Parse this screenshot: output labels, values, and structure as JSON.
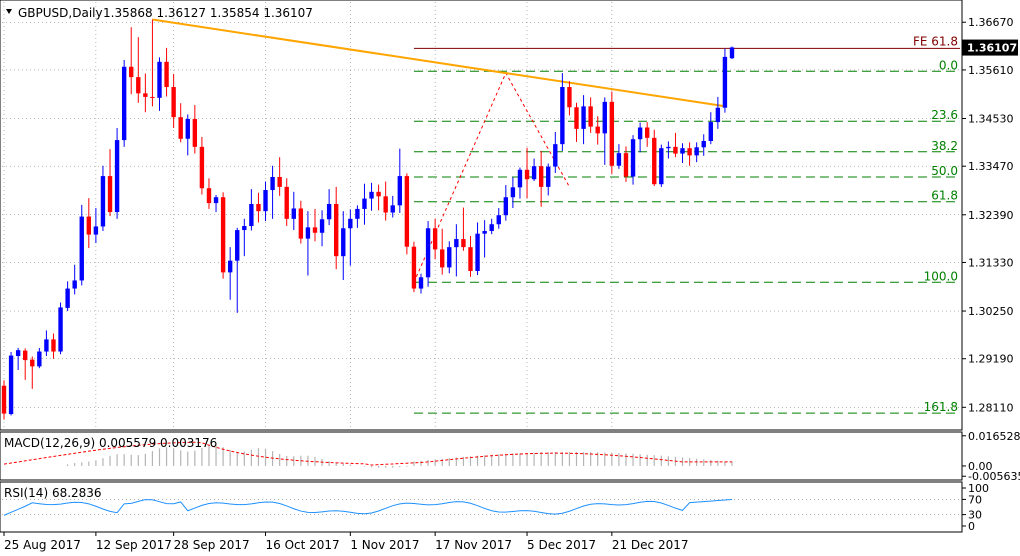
{
  "header": {
    "symbol": "GBPUSD,Daily",
    "ohlc": "1.35868 1.36127 1.35854 1.36107"
  },
  "colors": {
    "bull": "#0000ff",
    "bear": "#ff0000",
    "trendline": "#ffa500",
    "fib_level": "#008000",
    "fib_label": "#008000",
    "fe_line": "#800000",
    "swing_line": "#ff0000",
    "grid": "#000000",
    "macd_signal": "#ff0000",
    "macd_hist": "#b4b4b4",
    "rsi_line": "#1e90ff",
    "price_box_bg": "#000000",
    "price_box_text": "#ffffff"
  },
  "chart_data": [
    {
      "type": "candlestick",
      "title": "GBPUSD,Daily",
      "y_ticks": [
        "1.36670",
        "1.35610",
        "1.34530",
        "1.33470",
        "1.32390",
        "1.31330",
        "1.30250",
        "1.29190",
        "1.28110"
      ],
      "current_price": "1.36107",
      "ylim": [
        1.2765,
        1.3712
      ],
      "x_ticks": [
        "25 Aug 2017",
        "12 Sep 2017",
        "28 Sep 2017",
        "16 Oct 2017",
        "1 Nov 2017",
        "17 Nov 2017",
        "5 Dec 2017",
        "21 Dec 2017"
      ],
      "fibonacci": {
        "levels": [
          {
            "label": "0.0",
            "value": 1.3558
          },
          {
            "label": "23.6",
            "value": 1.3447
          },
          {
            "label": "38.2",
            "value": 1.3379
          },
          {
            "label": "50.0",
            "value": 1.3323
          },
          {
            "label": "61.8",
            "value": 1.3268
          },
          {
            "label": "100.0",
            "value": 1.3089
          },
          {
            "label": "161.8",
            "value": 1.2798
          }
        ],
        "extension": {
          "label": "FE 61.8",
          "value": 1.3609
        }
      },
      "candles": [
        [
          1.2859,
          1.2871,
          1.2784,
          1.2797
        ],
        [
          1.2796,
          1.2934,
          1.2793,
          1.2926
        ],
        [
          1.2925,
          1.2943,
          1.2894,
          1.2938
        ],
        [
          1.2937,
          1.2942,
          1.2872,
          1.2916
        ],
        [
          1.2917,
          1.2924,
          1.2852,
          1.2902
        ],
        [
          1.2902,
          1.2943,
          1.2898,
          1.2935
        ],
        [
          1.2935,
          1.2982,
          1.2925,
          1.2962
        ],
        [
          1.2962,
          1.2975,
          1.2919,
          1.2935
        ],
        [
          1.2935,
          1.3044,
          1.2929,
          1.3033
        ],
        [
          1.3032,
          1.3091,
          1.3025,
          1.3075
        ],
        [
          1.3075,
          1.3128,
          1.3062,
          1.3093
        ],
        [
          1.3093,
          1.3261,
          1.3082,
          1.3235
        ],
        [
          1.3235,
          1.3276,
          1.3165,
          1.3195
        ],
        [
          1.3195,
          1.3254,
          1.3176,
          1.3213
        ],
        [
          1.3213,
          1.3348,
          1.3203,
          1.3325
        ],
        [
          1.3325,
          1.3385,
          1.3236,
          1.3245
        ],
        [
          1.3245,
          1.3432,
          1.323,
          1.3405
        ],
        [
          1.3405,
          1.3583,
          1.339,
          1.3568
        ],
        [
          1.3568,
          1.3656,
          1.3507,
          1.3545
        ],
        [
          1.3545,
          1.3634,
          1.3488,
          1.3509
        ],
        [
          1.3509,
          1.3553,
          1.3467,
          1.3501
        ],
        [
          1.3501,
          1.3673,
          1.348,
          1.3499
        ],
        [
          1.3499,
          1.3589,
          1.347,
          1.3579
        ],
        [
          1.3579,
          1.361,
          1.3502,
          1.3523
        ],
        [
          1.3523,
          1.3552,
          1.3432,
          1.3456
        ],
        [
          1.3456,
          1.3487,
          1.34,
          1.3408
        ],
        [
          1.3408,
          1.3462,
          1.3371,
          1.3452
        ],
        [
          1.3452,
          1.3483,
          1.3375,
          1.339
        ],
        [
          1.339,
          1.3412,
          1.3284,
          1.3298
        ],
        [
          1.3298,
          1.332,
          1.3252,
          1.3265
        ],
        [
          1.3265,
          1.3283,
          1.3245,
          1.3278
        ],
        [
          1.3278,
          1.3289,
          1.3097,
          1.3111
        ],
        [
          1.3111,
          1.3167,
          1.305,
          1.3137
        ],
        [
          1.3137,
          1.321,
          1.3021,
          1.3205
        ],
        [
          1.3205,
          1.323,
          1.3147,
          1.3214
        ],
        [
          1.3214,
          1.3296,
          1.3204,
          1.3263
        ],
        [
          1.3263,
          1.3288,
          1.3222,
          1.3247
        ],
        [
          1.3247,
          1.3313,
          1.3225,
          1.3294
        ],
        [
          1.3294,
          1.3348,
          1.323,
          1.3323
        ],
        [
          1.3323,
          1.3367,
          1.3281,
          1.3301
        ],
        [
          1.3301,
          1.332,
          1.3214,
          1.323
        ],
        [
          1.323,
          1.329,
          1.3205,
          1.3253
        ],
        [
          1.3253,
          1.327,
          1.3175,
          1.3186
        ],
        [
          1.3186,
          1.3247,
          1.3104,
          1.3211
        ],
        [
          1.3211,
          1.3252,
          1.318,
          1.3199
        ],
        [
          1.3199,
          1.3249,
          1.3169,
          1.3229
        ],
        [
          1.3229,
          1.3296,
          1.3216,
          1.3263
        ],
        [
          1.3263,
          1.3301,
          1.3118,
          1.3147
        ],
        [
          1.3147,
          1.3247,
          1.3094,
          1.3209
        ],
        [
          1.3209,
          1.3251,
          1.3126,
          1.323
        ],
        [
          1.323,
          1.326,
          1.321,
          1.3252
        ],
        [
          1.3252,
          1.3308,
          1.3217,
          1.3275
        ],
        [
          1.3275,
          1.331,
          1.3248,
          1.329
        ],
        [
          1.329,
          1.3306,
          1.3249,
          1.328
        ],
        [
          1.328,
          1.3313,
          1.3226,
          1.3244
        ],
        [
          1.3244,
          1.3281,
          1.3233,
          1.326
        ],
        [
          1.326,
          1.3386,
          1.3243,
          1.3325
        ],
        [
          1.3325,
          1.3331,
          1.3151,
          1.3168
        ],
        [
          1.3168,
          1.3179,
          1.3067,
          1.3075
        ],
        [
          1.3075,
          1.3108,
          1.3064,
          1.31
        ],
        [
          1.31,
          1.3225,
          1.3079,
          1.3209
        ],
        [
          1.3209,
          1.323,
          1.314,
          1.3162
        ],
        [
          1.3162,
          1.3208,
          1.3106,
          1.3122
        ],
        [
          1.3122,
          1.318,
          1.3109,
          1.3167
        ],
        [
          1.3167,
          1.3218,
          1.3102,
          1.3185
        ],
        [
          1.3185,
          1.3255,
          1.3159,
          1.3167
        ],
        [
          1.3167,
          1.3192,
          1.3101,
          1.3114
        ],
        [
          1.3114,
          1.3222,
          1.3105,
          1.3197
        ],
        [
          1.3197,
          1.3227,
          1.3144,
          1.3203
        ],
        [
          1.3203,
          1.323,
          1.3196,
          1.3218
        ],
        [
          1.3218,
          1.3254,
          1.3208,
          1.3238
        ],
        [
          1.3238,
          1.3305,
          1.3226,
          1.3278
        ],
        [
          1.3278,
          1.3322,
          1.3254,
          1.33
        ],
        [
          1.33,
          1.3344,
          1.3275,
          1.3339
        ],
        [
          1.3339,
          1.3388,
          1.3276,
          1.3318
        ],
        [
          1.3318,
          1.3364,
          1.3314,
          1.3347
        ],
        [
          1.3347,
          1.3381,
          1.3257,
          1.3301
        ],
        [
          1.3301,
          1.3353,
          1.3282,
          1.3346
        ],
        [
          1.3346,
          1.3423,
          1.3332,
          1.3396
        ],
        [
          1.3396,
          1.3554,
          1.3381,
          1.3523
        ],
        [
          1.3523,
          1.3536,
          1.346,
          1.3478
        ],
        [
          1.3478,
          1.3488,
          1.3401,
          1.343
        ],
        [
          1.343,
          1.3505,
          1.3396,
          1.348
        ],
        [
          1.348,
          1.35,
          1.3421,
          1.3435
        ],
        [
          1.3435,
          1.3458,
          1.3395,
          1.342
        ],
        [
          1.342,
          1.35,
          1.335,
          1.349
        ],
        [
          1.349,
          1.3513,
          1.333,
          1.3348
        ],
        [
          1.3348,
          1.3396,
          1.3341,
          1.3376
        ],
        [
          1.3376,
          1.3391,
          1.3312,
          1.3324
        ],
        [
          1.3324,
          1.3416,
          1.3306,
          1.3407
        ],
        [
          1.3407,
          1.3444,
          1.3378,
          1.3433
        ],
        [
          1.3433,
          1.3445,
          1.339,
          1.341
        ],
        [
          1.341,
          1.3428,
          1.3303,
          1.3307
        ],
        [
          1.3307,
          1.3395,
          1.3301,
          1.3387
        ],
        [
          1.3387,
          1.3402,
          1.3364,
          1.339
        ],
        [
          1.339,
          1.3421,
          1.3367,
          1.3375
        ],
        [
          1.3375,
          1.3398,
          1.3354,
          1.3387
        ],
        [
          1.3387,
          1.34,
          1.3348,
          1.3371
        ],
        [
          1.3371,
          1.34,
          1.3356,
          1.3389
        ],
        [
          1.3389,
          1.3418,
          1.337,
          1.3403
        ],
        [
          1.3403,
          1.3467,
          1.3396,
          1.3445
        ],
        [
          1.3445,
          1.3501,
          1.343,
          1.3477
        ],
        [
          1.3477,
          1.3608,
          1.3466,
          1.359
        ],
        [
          1.3587,
          1.3613,
          1.3585,
          1.3611
        ]
      ]
    },
    {
      "type": "line",
      "title": "MACD(12,26,9) 0.005579 0.003176",
      "y_ticks": [
        "0.016528",
        "0.00",
        "-0.005635"
      ],
      "ylim": [
        -0.0066,
        0.0175
      ]
    },
    {
      "type": "line",
      "title": "RSI(14) 68.2836",
      "y_ticks": [
        "100",
        "70",
        "30",
        "0"
      ],
      "ylim": [
        0,
        100
      ]
    }
  ]
}
